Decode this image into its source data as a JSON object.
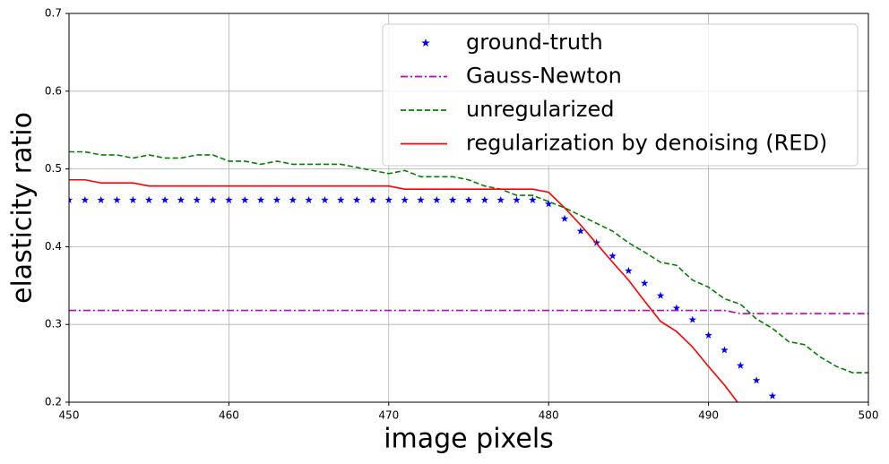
{
  "chart_data": {
    "type": "line",
    "xlabel": "image pixels",
    "ylabel": "elasticity ratio",
    "xlim": [
      450,
      500
    ],
    "ylim": [
      0.2,
      0.7
    ],
    "xticks": [
      450,
      460,
      470,
      480,
      490,
      500
    ],
    "yticks": [
      0.2,
      0.3,
      0.4,
      0.5,
      0.6,
      0.7
    ],
    "grid": true,
    "legend": "upper right",
    "series": [
      {
        "name": "ground-truth",
        "color": "#0000ff",
        "marker": "star",
        "linestyle": "none",
        "x": [
          450,
          451,
          452,
          453,
          454,
          455,
          456,
          457,
          458,
          459,
          460,
          461,
          462,
          463,
          464,
          465,
          466,
          467,
          468,
          469,
          470,
          471,
          472,
          473,
          474,
          475,
          476,
          477,
          478,
          479,
          480,
          481,
          482,
          483,
          484,
          485,
          486,
          487,
          488,
          489,
          490,
          491,
          492,
          493,
          494
        ],
        "values": [
          0.46,
          0.46,
          0.46,
          0.46,
          0.46,
          0.46,
          0.46,
          0.46,
          0.46,
          0.46,
          0.46,
          0.46,
          0.46,
          0.46,
          0.46,
          0.46,
          0.46,
          0.46,
          0.46,
          0.46,
          0.46,
          0.46,
          0.46,
          0.46,
          0.46,
          0.46,
          0.46,
          0.46,
          0.46,
          0.46,
          0.455,
          0.436,
          0.42,
          0.405,
          0.388,
          0.369,
          0.353,
          0.337,
          0.321,
          0.306,
          0.286,
          0.267,
          0.247,
          0.228,
          0.208
        ]
      },
      {
        "name": "Gauss-Newton",
        "color": "#bf00bf",
        "linestyle": "dashdot",
        "x": [
          450,
          491,
          492,
          500
        ],
        "values": [
          0.318,
          0.318,
          0.314,
          0.314
        ]
      },
      {
        "name": "unregularized",
        "color": "#008000",
        "linestyle": "dashed",
        "x": [
          450,
          451,
          452,
          453,
          454,
          455,
          456,
          457,
          458,
          459,
          460,
          461,
          462,
          463,
          464,
          465,
          466,
          467,
          468,
          469,
          470,
          471,
          472,
          473,
          474,
          475,
          476,
          477,
          478,
          479,
          480,
          481,
          482,
          483,
          484,
          485,
          486,
          487,
          488,
          489,
          490,
          491,
          492,
          493,
          494,
          495,
          496,
          497,
          498,
          499,
          500
        ],
        "values": [
          0.522,
          0.522,
          0.518,
          0.518,
          0.514,
          0.518,
          0.514,
          0.514,
          0.518,
          0.518,
          0.51,
          0.51,
          0.506,
          0.51,
          0.506,
          0.506,
          0.506,
          0.506,
          0.502,
          0.498,
          0.494,
          0.498,
          0.49,
          0.49,
          0.49,
          0.486,
          0.478,
          0.474,
          0.466,
          0.466,
          0.458,
          0.45,
          0.44,
          0.43,
          0.42,
          0.405,
          0.393,
          0.38,
          0.376,
          0.357,
          0.348,
          0.333,
          0.326,
          0.307,
          0.295,
          0.278,
          0.274,
          0.258,
          0.246,
          0.238,
          0.238
        ]
      },
      {
        "name": "regularization by denoising (RED)",
        "color": "#ff0000",
        "linestyle": "solid",
        "x": [
          450,
          451,
          452,
          453,
          454,
          455,
          456,
          457,
          458,
          459,
          460,
          461,
          462,
          463,
          464,
          465,
          466,
          467,
          468,
          469,
          470,
          471,
          472,
          473,
          474,
          475,
          476,
          477,
          478,
          479,
          480,
          481,
          482,
          483,
          484,
          485,
          486,
          487,
          488,
          489,
          490,
          491,
          492
        ],
        "values": [
          0.486,
          0.486,
          0.482,
          0.482,
          0.482,
          0.478,
          0.478,
          0.478,
          0.478,
          0.478,
          0.478,
          0.478,
          0.478,
          0.478,
          0.478,
          0.478,
          0.478,
          0.478,
          0.478,
          0.478,
          0.478,
          0.474,
          0.474,
          0.474,
          0.474,
          0.474,
          0.474,
          0.474,
          0.474,
          0.474,
          0.47,
          0.45,
          0.428,
          0.404,
          0.38,
          0.357,
          0.33,
          0.304,
          0.291,
          0.271,
          0.246,
          0.222,
          0.195
        ]
      }
    ]
  }
}
